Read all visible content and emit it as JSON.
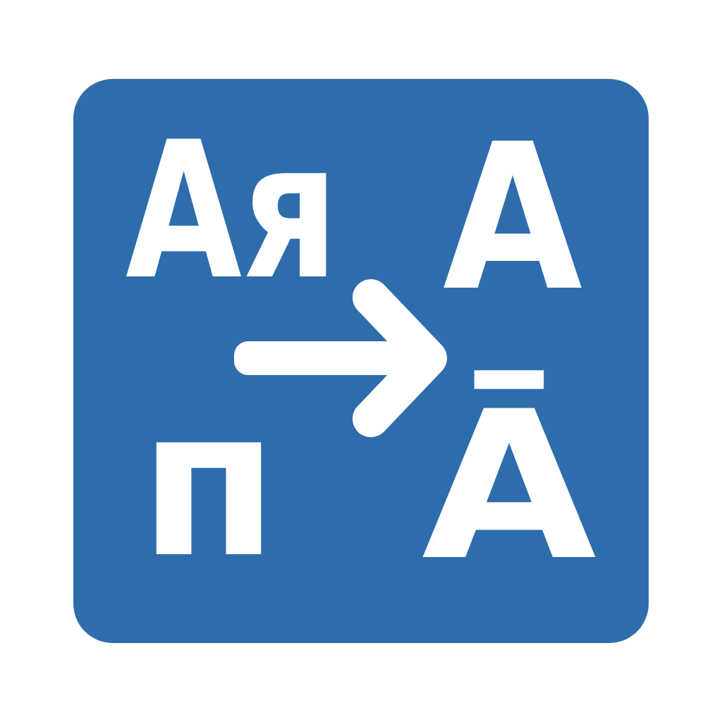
{
  "icon": {
    "name": "translate-icon",
    "background_color": "#2e6dac",
    "foreground_color": "#ffffff",
    "glyphs": {
      "source_top": "Aя",
      "target_top": "A",
      "source_bottom": "п",
      "target_bottom": "Ā"
    },
    "arrow": "arrow-right-icon"
  }
}
